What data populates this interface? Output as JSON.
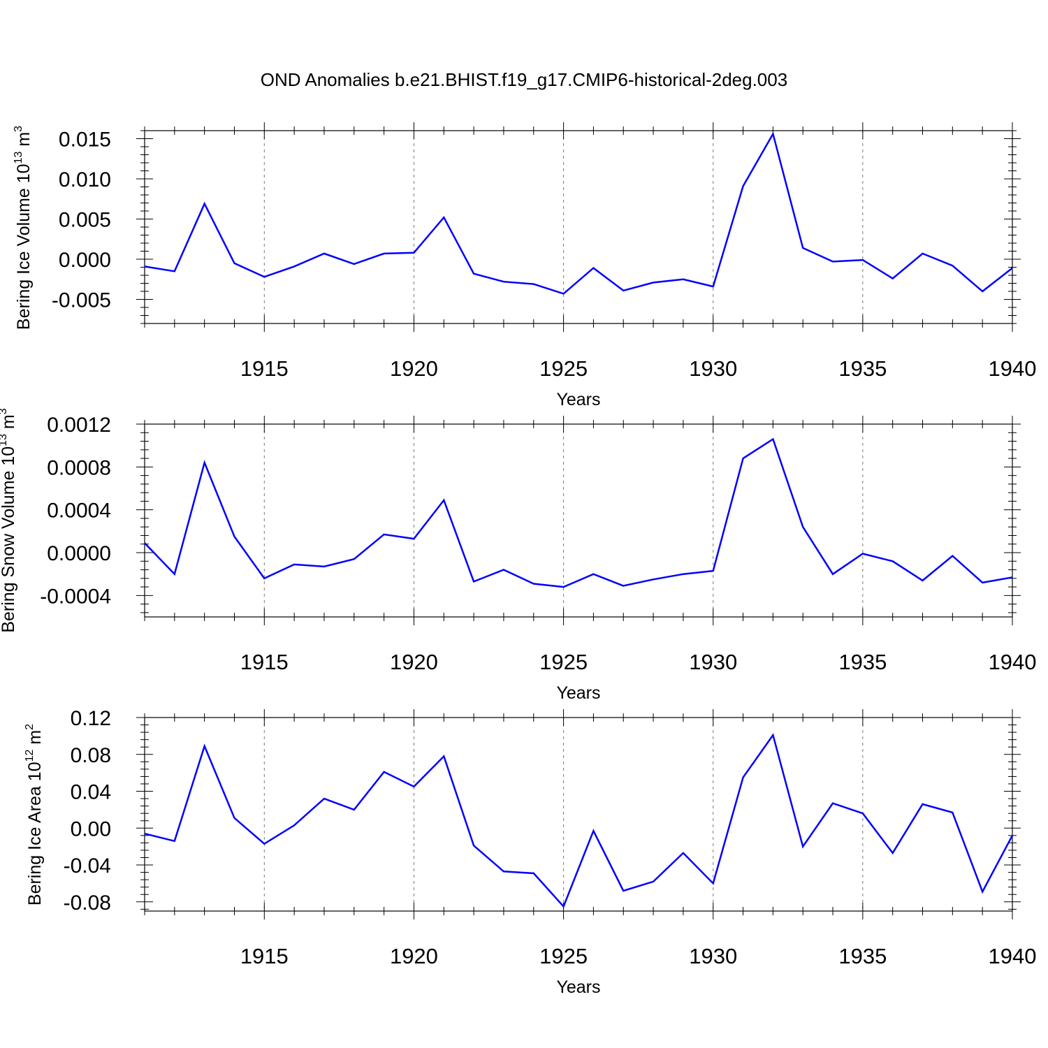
{
  "title": "OND Anomalies b.e21.BHIST.f19_g17.CMIP6-historical-2deg.003",
  "line_color": "#0000ff",
  "chart_data": [
    {
      "type": "line",
      "xlabel": "Years",
      "ylabel_main": "Bering Ice Volume 10",
      "ylabel_exp": "13",
      "ylabel_unit": " m",
      "ylabel_unit_exp": "3",
      "xlim": [
        1911,
        1940
      ],
      "ylim": [
        -0.008,
        0.016
      ],
      "xticks": [
        1915,
        1920,
        1925,
        1930,
        1935,
        1940
      ],
      "yticks": [
        -0.005,
        0.0,
        0.005,
        0.01,
        0.015
      ],
      "ytick_labels": [
        "-0.005",
        "0.000",
        "0.005",
        "0.010",
        "0.015"
      ],
      "x": [
        1911,
        1912,
        1913,
        1914,
        1915,
        1916,
        1917,
        1918,
        1919,
        1920,
        1921,
        1922,
        1923,
        1924,
        1925,
        1926,
        1927,
        1928,
        1929,
        1930,
        1931,
        1932,
        1933,
        1934,
        1935,
        1936,
        1937,
        1938,
        1939,
        1940
      ],
      "values": [
        -0.0009,
        -0.0015,
        0.0069,
        -0.0005,
        -0.0022,
        -0.0009,
        0.0007,
        -0.0006,
        0.0007,
        0.0008,
        0.0052,
        -0.0018,
        -0.0028,
        -0.0031,
        -0.0043,
        -0.0011,
        -0.0039,
        -0.0029,
        -0.0025,
        -0.0034,
        0.0091,
        0.0156,
        0.0014,
        -0.0003,
        -0.0001,
        -0.0024,
        0.0007,
        -0.0008,
        -0.004,
        -0.0011
      ]
    },
    {
      "type": "line",
      "xlabel": "Years",
      "ylabel_main": "Bering Snow Volume 10",
      "ylabel_exp": "13",
      "ylabel_unit": " m",
      "ylabel_unit_exp": "3",
      "xlim": [
        1911,
        1940
      ],
      "ylim": [
        -0.0006,
        0.0012
      ],
      "xticks": [
        1915,
        1920,
        1925,
        1930,
        1935,
        1940
      ],
      "yticks": [
        -0.0004,
        0.0,
        0.0004,
        0.0008,
        0.0012
      ],
      "ytick_labels": [
        "-0.0004",
        "0.0000",
        "0.0004",
        "0.0008",
        "0.0012"
      ],
      "x": [
        1911,
        1912,
        1913,
        1914,
        1915,
        1916,
        1917,
        1918,
        1919,
        1920,
        1921,
        1922,
        1923,
        1924,
        1925,
        1926,
        1927,
        1928,
        1929,
        1930,
        1931,
        1932,
        1933,
        1934,
        1935,
        1936,
        1937,
        1938,
        1939,
        1940
      ],
      "values": [
        9e-05,
        -0.0002,
        0.00084,
        0.00015,
        -0.00024,
        -0.00011,
        -0.00013,
        -6e-05,
        0.00017,
        0.00013,
        0.00049,
        -0.00027,
        -0.00016,
        -0.00029,
        -0.00032,
        -0.0002,
        -0.00031,
        -0.00025,
        -0.0002,
        -0.00017,
        0.00088,
        0.00106,
        0.00024,
        -0.0002,
        -1e-05,
        -8e-05,
        -0.00026,
        -3e-05,
        -0.00028,
        -0.00023
      ]
    },
    {
      "type": "line",
      "xlabel": "Years",
      "ylabel_main": "Bering Ice Area 10",
      "ylabel_exp": "12",
      "ylabel_unit": " m",
      "ylabel_unit_exp": "2",
      "xlim": [
        1911,
        1940
      ],
      "ylim": [
        -0.09,
        0.12
      ],
      "xticks": [
        1915,
        1920,
        1925,
        1930,
        1935,
        1940
      ],
      "yticks": [
        -0.08,
        -0.04,
        0.0,
        0.04,
        0.08,
        0.12
      ],
      "ytick_labels": [
        "-0.08",
        "-0.04",
        "0.00",
        "0.04",
        "0.08",
        "0.12"
      ],
      "x": [
        1911,
        1912,
        1913,
        1914,
        1915,
        1916,
        1917,
        1918,
        1919,
        1920,
        1921,
        1922,
        1923,
        1924,
        1925,
        1926,
        1927,
        1928,
        1929,
        1930,
        1931,
        1932,
        1933,
        1934,
        1935,
        1936,
        1937,
        1938,
        1939,
        1940
      ],
      "values": [
        -0.006,
        -0.014,
        0.089,
        0.011,
        -0.017,
        0.003,
        0.032,
        0.02,
        0.061,
        0.045,
        0.078,
        -0.019,
        -0.047,
        -0.049,
        -0.085,
        -0.003,
        -0.068,
        -0.058,
        -0.027,
        -0.06,
        0.055,
        0.101,
        -0.02,
        0.027,
        0.016,
        -0.027,
        0.026,
        0.017,
        -0.069,
        -0.008
      ]
    }
  ]
}
